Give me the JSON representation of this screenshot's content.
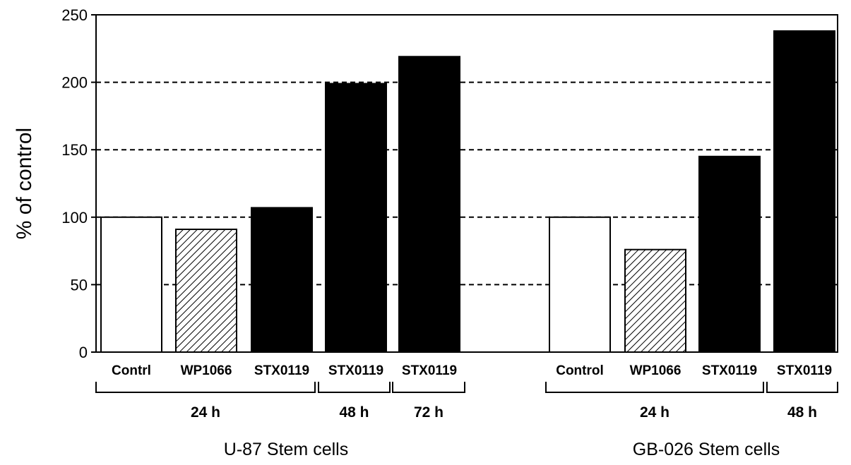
{
  "chart_data": {
    "type": "bar",
    "ylabel": "% of control",
    "ylim": [
      0,
      250
    ],
    "yticks": [
      0,
      50,
      100,
      150,
      200,
      250
    ],
    "grid": "dashed horizontal at 50, 100, 150, 200",
    "categories": [
      "Contrl",
      "WP1066",
      "STX0119",
      "STX0119",
      "STX0119",
      "Control",
      "WP1066",
      "STX0119",
      "STX0119"
    ],
    "values": [
      100,
      91,
      107,
      199,
      219,
      100,
      76,
      145,
      238
    ],
    "bar_styles": [
      "white",
      "hatched",
      "black",
      "black",
      "black",
      "white",
      "hatched",
      "black",
      "black"
    ],
    "time_groups": [
      {
        "label": "24 h",
        "bars": [
          0,
          1,
          2
        ]
      },
      {
        "label": "48 h",
        "bars": [
          3
        ]
      },
      {
        "label": "72 h",
        "bars": [
          4
        ]
      },
      {
        "label": "24 h",
        "bars": [
          5,
          6,
          7
        ]
      },
      {
        "label": "48 h",
        "bars": [
          8
        ]
      }
    ],
    "cell_groups": [
      {
        "label": "U-87 Stem cells",
        "bars": [
          0,
          1,
          2,
          3,
          4
        ]
      },
      {
        "label": "GB-026 Stem cells",
        "bars": [
          5,
          6,
          7,
          8
        ]
      }
    ]
  }
}
